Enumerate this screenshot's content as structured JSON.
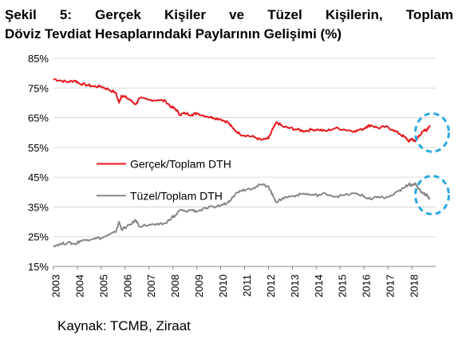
{
  "header": {
    "title_line1": "Şekil 5: Gerçek Kişiler ve Tüzel Kişilerin, Toplam",
    "title_line2": "Döviz Tevdiat Hesaplarındaki Paylarının Gelişimi (%)"
  },
  "footer": {
    "source": "Kaynak: TCMB, Ziraat"
  },
  "chart_data": {
    "type": "line",
    "title": "Şekil 5: Gerçek Kişiler ve Tüzel Kişilerin, Toplam Döviz Tevdiat Hesaplarındaki Paylarının Gelişimi (%)",
    "xlabel": "",
    "ylabel": "",
    "ylim": [
      15,
      85
    ],
    "xlim": [
      2003,
      2019
    ],
    "y_ticks": [
      "15%",
      "25%",
      "35%",
      "45%",
      "55%",
      "65%",
      "75%",
      "85%"
    ],
    "x_ticks": [
      "2003",
      "2004",
      "2005",
      "2006",
      "2007",
      "2008",
      "2009",
      "2010",
      "2011",
      "2012",
      "2013",
      "2014",
      "2015",
      "2016",
      "2017",
      "2018"
    ],
    "grid": "horizontal",
    "legend_position": "center-left",
    "series": [
      {
        "name": "Gerçek/Toplam DTH",
        "color": "#e8161b",
        "points": [
          [
            2003.0,
            78.0
          ],
          [
            2003.3,
            77.5
          ],
          [
            2003.6,
            77.0
          ],
          [
            2003.9,
            77.5
          ],
          [
            2004.1,
            76.5
          ],
          [
            2004.4,
            76.0
          ],
          [
            2004.7,
            75.5
          ],
          [
            2005.0,
            75.5
          ],
          [
            2005.3,
            74.5
          ],
          [
            2005.6,
            73.5
          ],
          [
            2005.75,
            70.0
          ],
          [
            2005.85,
            72.5
          ],
          [
            2006.0,
            72.0
          ],
          [
            2006.2,
            71.0
          ],
          [
            2006.45,
            69.5
          ],
          [
            2006.6,
            71.5
          ],
          [
            2007.0,
            71.0
          ],
          [
            2007.4,
            71.0
          ],
          [
            2007.7,
            70.5
          ],
          [
            2007.95,
            68.5
          ],
          [
            2008.1,
            68.0
          ],
          [
            2008.3,
            66.0
          ],
          [
            2008.5,
            66.5
          ],
          [
            2008.8,
            66.0
          ],
          [
            2009.0,
            66.5
          ],
          [
            2009.4,
            65.5
          ],
          [
            2009.7,
            65.0
          ],
          [
            2010.0,
            64.5
          ],
          [
            2010.3,
            63.5
          ],
          [
            2010.5,
            61.5
          ],
          [
            2010.8,
            59.5
          ],
          [
            2011.1,
            59.0
          ],
          [
            2011.4,
            58.5
          ],
          [
            2011.7,
            57.5
          ],
          [
            2012.0,
            58.0
          ],
          [
            2012.2,
            61.5
          ],
          [
            2012.35,
            63.5
          ],
          [
            2012.6,
            62.0
          ],
          [
            2012.9,
            61.5
          ],
          [
            2013.2,
            61.0
          ],
          [
            2013.5,
            60.5
          ],
          [
            2013.8,
            61.0
          ],
          [
            2014.1,
            61.0
          ],
          [
            2014.4,
            60.5
          ],
          [
            2014.8,
            61.5
          ],
          [
            2015.2,
            61.0
          ],
          [
            2015.6,
            60.5
          ],
          [
            2015.9,
            61.0
          ],
          [
            2016.1,
            62.0
          ],
          [
            2016.3,
            62.5
          ],
          [
            2016.6,
            61.5
          ],
          [
            2016.9,
            62.0
          ],
          [
            2017.2,
            61.0
          ],
          [
            2017.5,
            59.5
          ],
          [
            2017.7,
            58.5
          ],
          [
            2017.9,
            57.0
          ],
          [
            2018.0,
            58.0
          ],
          [
            2018.15,
            57.0
          ],
          [
            2018.3,
            59.0
          ],
          [
            2018.5,
            60.5
          ],
          [
            2018.65,
            61.0
          ],
          [
            2018.75,
            62.5
          ]
        ]
      },
      {
        "name": "Tüzel/Toplam DTH",
        "color": "#878787",
        "points": [
          [
            2003.0,
            22.0
          ],
          [
            2003.3,
            22.5
          ],
          [
            2003.6,
            23.0
          ],
          [
            2003.9,
            22.5
          ],
          [
            2004.1,
            23.5
          ],
          [
            2004.4,
            24.0
          ],
          [
            2004.7,
            24.5
          ],
          [
            2005.0,
            24.5
          ],
          [
            2005.3,
            25.5
          ],
          [
            2005.6,
            26.5
          ],
          [
            2005.75,
            30.0
          ],
          [
            2005.85,
            27.5
          ],
          [
            2006.0,
            28.0
          ],
          [
            2006.2,
            29.0
          ],
          [
            2006.45,
            30.5
          ],
          [
            2006.6,
            28.5
          ],
          [
            2007.0,
            29.0
          ],
          [
            2007.4,
            29.0
          ],
          [
            2007.7,
            29.5
          ],
          [
            2007.95,
            31.5
          ],
          [
            2008.1,
            32.0
          ],
          [
            2008.3,
            34.0
          ],
          [
            2008.5,
            33.5
          ],
          [
            2008.8,
            34.0
          ],
          [
            2009.0,
            33.5
          ],
          [
            2009.4,
            34.5
          ],
          [
            2009.7,
            35.0
          ],
          [
            2010.0,
            35.5
          ],
          [
            2010.3,
            36.5
          ],
          [
            2010.5,
            38.5
          ],
          [
            2010.8,
            40.5
          ],
          [
            2011.1,
            41.0
          ],
          [
            2011.4,
            41.5
          ],
          [
            2011.7,
            42.5
          ],
          [
            2012.0,
            42.0
          ],
          [
            2012.2,
            38.5
          ],
          [
            2012.35,
            36.5
          ],
          [
            2012.6,
            38.0
          ],
          [
            2012.9,
            38.5
          ],
          [
            2013.2,
            39.0
          ],
          [
            2013.5,
            39.5
          ],
          [
            2013.8,
            39.0
          ],
          [
            2014.1,
            39.0
          ],
          [
            2014.4,
            39.5
          ],
          [
            2014.8,
            38.5
          ],
          [
            2015.2,
            39.0
          ],
          [
            2015.6,
            39.5
          ],
          [
            2015.9,
            39.0
          ],
          [
            2016.1,
            38.0
          ],
          [
            2016.3,
            37.5
          ],
          [
            2016.6,
            38.5
          ],
          [
            2016.9,
            38.0
          ],
          [
            2017.2,
            39.0
          ],
          [
            2017.5,
            40.5
          ],
          [
            2017.7,
            41.5
          ],
          [
            2017.9,
            43.0
          ],
          [
            2018.0,
            42.0
          ],
          [
            2018.15,
            43.0
          ],
          [
            2018.3,
            41.0
          ],
          [
            2018.5,
            39.5
          ],
          [
            2018.65,
            39.0
          ],
          [
            2018.75,
            37.5
          ]
        ]
      }
    ],
    "highlight_circles": [
      {
        "x": 2018.75,
        "y": 60.0,
        "color": "#2aa8e0",
        "style": "dashed"
      },
      {
        "x": 2018.75,
        "y": 39.0,
        "color": "#2aa8e0",
        "style": "dashed"
      }
    ]
  }
}
